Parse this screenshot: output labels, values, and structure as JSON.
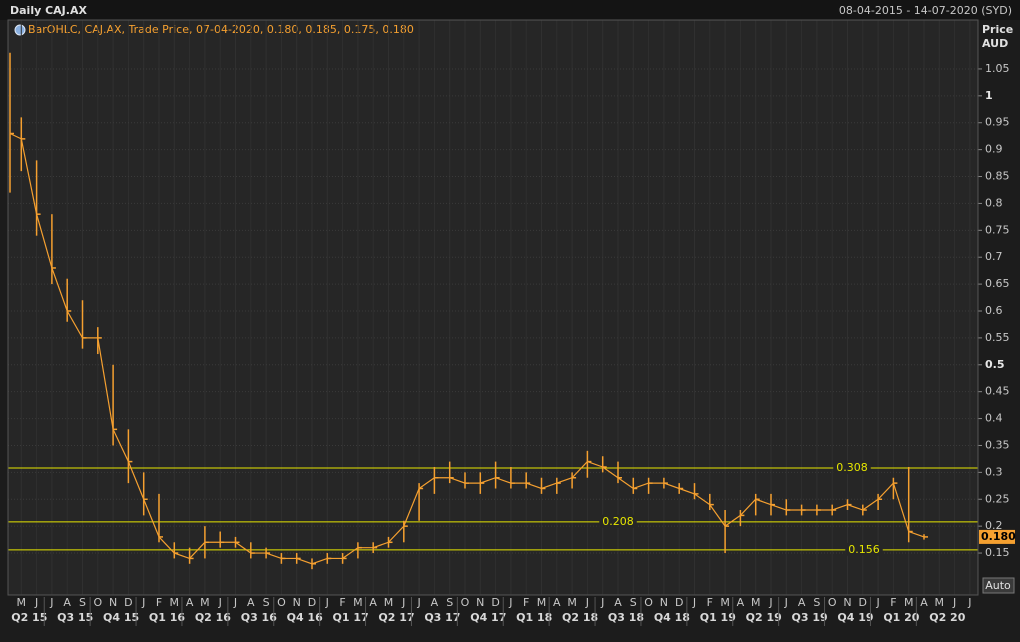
{
  "header": {
    "title": "Daily CAJ.AX",
    "range": "08-04-2015 - 14-07-2020 (SYD)"
  },
  "chart_data": {
    "type": "ohlc",
    "legend": "BarOHLC, CAJ.AX, Trade Price, 07-04-2020, 0.180, 0.185, 0.175, 0.180",
    "y_label": "Price",
    "y_unit": "AUD",
    "categories": [
      null,
      "M",
      "J",
      "J",
      "A",
      "S",
      "O",
      "N",
      "D",
      "J",
      "F",
      "M",
      "A",
      "M",
      "J",
      "J",
      "A",
      "S",
      "O",
      "N",
      "D",
      "J",
      "F",
      "M",
      "A",
      "M",
      "J",
      "J",
      "A",
      "S",
      "O",
      "N",
      "D",
      "J",
      "F",
      "M",
      "A",
      "M",
      "J",
      "J",
      "A",
      "S",
      "O",
      "N",
      "D",
      "J",
      "F",
      "M",
      "A",
      "M",
      "J",
      "J",
      "A",
      "S",
      "O",
      "N",
      "D",
      "J",
      "F",
      "M",
      "A",
      "M",
      "J",
      "J"
    ],
    "quarters": [
      "Q2 15",
      "Q3 15",
      "Q4 15",
      "Q1 16",
      "Q2 16",
      "Q3 16",
      "Q4 16",
      "Q1 17",
      "Q2 17",
      "Q3 17",
      "Q4 17",
      "Q1 18",
      "Q2 18",
      "Q3 18",
      "Q4 18",
      "Q1 19",
      "Q2 19",
      "Q3 19",
      "Q4 19",
      "Q1 20",
      "Q2 20"
    ],
    "series": [
      {
        "color": "#f5a030",
        "high": [
          1.08,
          0.96,
          0.88,
          0.78,
          0.66,
          0.62,
          0.57,
          0.5,
          0.38,
          0.3,
          0.26,
          0.17,
          0.16,
          0.2,
          0.19,
          0.18,
          0.17,
          0.16,
          0.15,
          0.15,
          0.14,
          0.15,
          0.15,
          0.17,
          0.17,
          0.18,
          0.21,
          0.28,
          0.31,
          0.32,
          0.3,
          0.3,
          0.32,
          0.31,
          0.3,
          0.29,
          0.29,
          0.3,
          0.34,
          0.33,
          0.32,
          0.29,
          0.29,
          0.29,
          0.28,
          0.28,
          0.26,
          0.23,
          0.23,
          0.26,
          0.26,
          0.25,
          0.24,
          0.24,
          0.24,
          0.25,
          0.24,
          0.26,
          0.29,
          0.31,
          0.185,
          null,
          null,
          null
        ],
        "low": [
          0.82,
          0.86,
          0.74,
          0.65,
          0.58,
          0.53,
          0.52,
          0.35,
          0.28,
          0.22,
          0.17,
          0.14,
          0.13,
          0.14,
          0.16,
          0.16,
          0.14,
          0.14,
          0.13,
          0.13,
          0.12,
          0.13,
          0.13,
          0.14,
          0.15,
          0.16,
          0.17,
          0.21,
          0.26,
          0.28,
          0.27,
          0.26,
          0.27,
          0.27,
          0.27,
          0.26,
          0.26,
          0.27,
          0.29,
          0.3,
          0.28,
          0.26,
          0.26,
          0.27,
          0.26,
          0.25,
          0.23,
          0.15,
          0.2,
          0.22,
          0.22,
          0.22,
          0.22,
          0.22,
          0.22,
          0.23,
          0.22,
          0.23,
          0.25,
          0.17,
          0.175,
          null,
          null,
          null
        ],
        "close": [
          0.93,
          0.92,
          0.78,
          0.68,
          0.6,
          0.55,
          0.55,
          0.38,
          0.32,
          0.25,
          0.18,
          0.15,
          0.14,
          0.17,
          0.17,
          0.17,
          0.15,
          0.15,
          0.14,
          0.14,
          0.13,
          0.14,
          0.14,
          0.16,
          0.16,
          0.17,
          0.2,
          0.27,
          0.29,
          0.29,
          0.28,
          0.28,
          0.29,
          0.28,
          0.28,
          0.27,
          0.28,
          0.29,
          0.32,
          0.31,
          0.29,
          0.27,
          0.28,
          0.28,
          0.27,
          0.26,
          0.24,
          0.2,
          0.22,
          0.25,
          0.24,
          0.23,
          0.23,
          0.23,
          0.23,
          0.24,
          0.23,
          0.25,
          0.28,
          0.19,
          0.18,
          null,
          null,
          null
        ]
      }
    ],
    "ylim": [
      0.072,
      1.141
    ],
    "yticks": [
      0.15,
      0.2,
      0.25,
      0.3,
      0.35,
      0.4,
      0.45,
      0.5,
      0.55,
      0.6,
      0.65,
      0.7,
      0.75,
      0.8,
      0.85,
      0.9,
      0.95,
      1,
      1.05
    ],
    "levels": {
      "color": "#e6e600",
      "values": [
        0.308,
        0.208,
        0.156
      ]
    },
    "last_price": {
      "value": 0.18,
      "label": "0.180"
    },
    "grid": true
  },
  "controls": {
    "auto": "Auto"
  }
}
